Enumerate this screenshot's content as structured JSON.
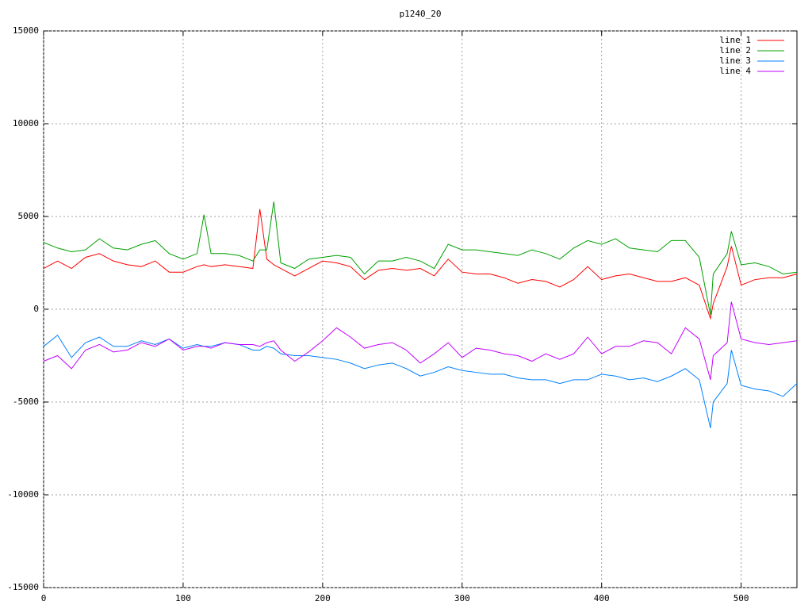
{
  "chart_data": {
    "type": "line",
    "title": "p1240_20",
    "x": [
      0,
      10,
      20,
      30,
      40,
      50,
      60,
      70,
      80,
      90,
      100,
      110,
      115,
      120,
      130,
      140,
      150,
      155,
      160,
      165,
      170,
      180,
      190,
      200,
      210,
      220,
      230,
      240,
      250,
      260,
      270,
      280,
      290,
      300,
      310,
      320,
      330,
      340,
      350,
      360,
      370,
      380,
      390,
      400,
      410,
      420,
      430,
      440,
      450,
      460,
      470,
      478,
      480,
      490,
      493,
      500,
      510,
      520,
      530,
      540
    ],
    "series": [
      {
        "name": "line 1",
        "color": "#ff0000",
        "values": [
          2200,
          2600,
          2200,
          2800,
          3000,
          2600,
          2400,
          2300,
          2600,
          2000,
          2000,
          2300,
          2400,
          2300,
          2400,
          2300,
          2200,
          5400,
          2700,
          2400,
          2200,
          1800,
          2200,
          2600,
          2500,
          2300,
          1600,
          2100,
          2200,
          2100,
          2200,
          1800,
          2700,
          2000,
          1900,
          1900,
          1700,
          1400,
          1600,
          1500,
          1200,
          1600,
          2300,
          1600,
          1800,
          1900,
          1700,
          1500,
          1500,
          1700,
          1300,
          -500,
          300,
          2300,
          3400,
          1300,
          1600,
          1700,
          1700,
          1900
        ]
      },
      {
        "name": "line 2",
        "color": "#00a000",
        "values": [
          3600,
          3300,
          3100,
          3200,
          3800,
          3300,
          3200,
          3500,
          3700,
          3000,
          2700,
          3000,
          5100,
          3000,
          3000,
          2900,
          2600,
          3200,
          3200,
          5800,
          2500,
          2200,
          2700,
          2800,
          2900,
          2800,
          1900,
          2600,
          2600,
          2800,
          2600,
          2200,
          3500,
          3200,
          3200,
          3100,
          3000,
          2900,
          3200,
          3000,
          2700,
          3300,
          3700,
          3500,
          3800,
          3300,
          3200,
          3100,
          3700,
          3700,
          2800,
          -300,
          1900,
          3000,
          4200,
          2400,
          2500,
          2300,
          1900,
          2000
        ]
      },
      {
        "name": "line 3",
        "color": "#0080ff",
        "values": [
          -2000,
          -1400,
          -2600,
          -1800,
          -1500,
          -2000,
          -2000,
          -1700,
          -1900,
          -1600,
          -2100,
          -1900,
          -2000,
          -2000,
          -1800,
          -1900,
          -2200,
          -2200,
          -2000,
          -2100,
          -2400,
          -2500,
          -2500,
          -2600,
          -2700,
          -2900,
          -3200,
          -3000,
          -2900,
          -3200,
          -3600,
          -3400,
          -3100,
          -3300,
          -3400,
          -3500,
          -3500,
          -3700,
          -3800,
          -3800,
          -4000,
          -3800,
          -3800,
          -3500,
          -3600,
          -3800,
          -3700,
          -3900,
          -3600,
          -3200,
          -3800,
          -6400,
          -5000,
          -4000,
          -2200,
          -4100,
          -4300,
          -4400,
          -4700,
          -4000
        ]
      },
      {
        "name": "line 4",
        "color": "#c000ff",
        "values": [
          -2800,
          -2500,
          -3200,
          -2200,
          -1900,
          -2300,
          -2200,
          -1800,
          -2000,
          -1600,
          -2200,
          -2000,
          -2000,
          -2100,
          -1800,
          -1900,
          -1900,
          -2000,
          -1800,
          -1700,
          -2200,
          -2800,
          -2300,
          -1700,
          -1000,
          -1500,
          -2100,
          -1900,
          -1800,
          -2200,
          -2900,
          -2400,
          -1800,
          -2600,
          -2100,
          -2200,
          -2400,
          -2500,
          -2800,
          -2400,
          -2700,
          -2400,
          -1500,
          -2400,
          -2000,
          -2000,
          -1700,
          -1800,
          -2400,
          -1000,
          -1600,
          -3800,
          -2500,
          -1800,
          400,
          -1600,
          -1800,
          -1900,
          -1800,
          -1700
        ]
      }
    ],
    "xlim": [
      0,
      540
    ],
    "xticks": [
      0,
      100,
      200,
      300,
      400,
      500
    ],
    "ylim": [
      -15000,
      15000
    ],
    "yticks": [
      -15000,
      -10000,
      -5000,
      0,
      5000,
      10000,
      15000
    ],
    "grid": true,
    "legend": "top-right"
  }
}
